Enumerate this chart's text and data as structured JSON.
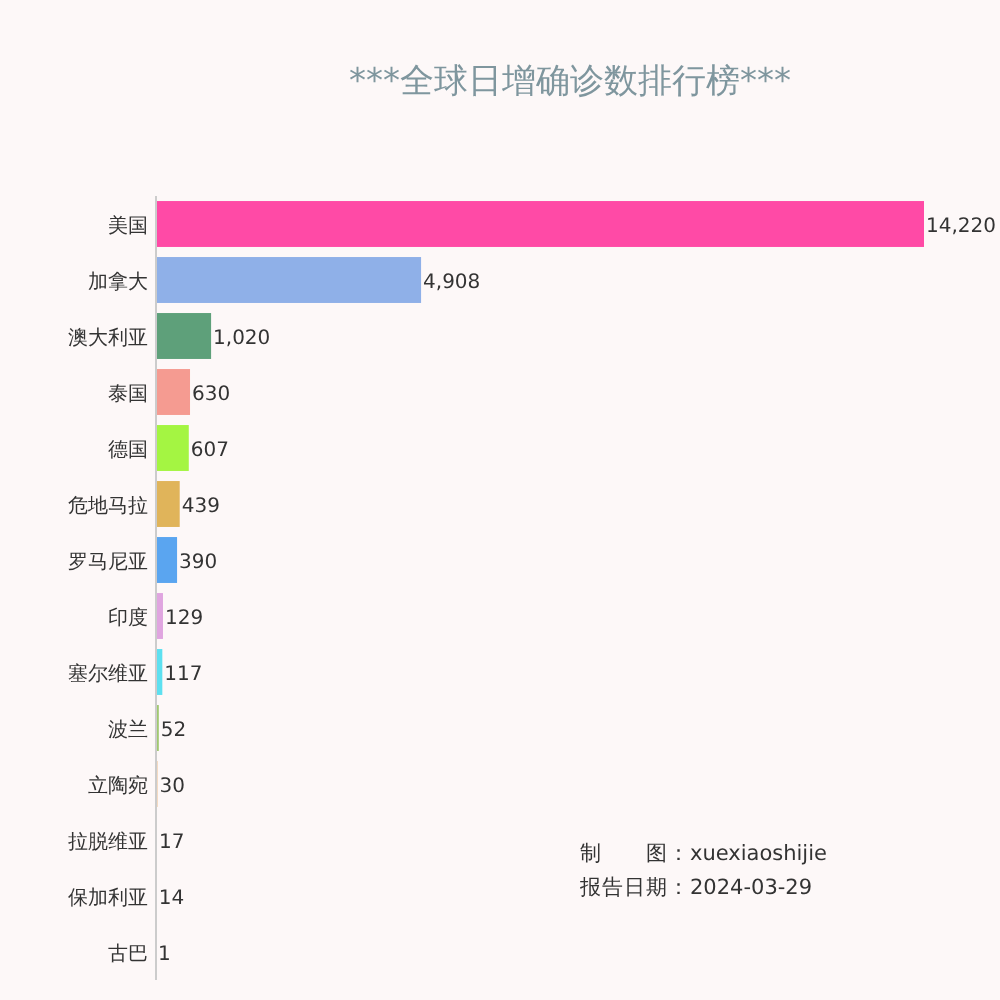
{
  "chart_data": {
    "type": "bar",
    "orientation": "horizontal",
    "title": "***全球日增确诊数排行榜***",
    "categories": [
      "美国",
      "加拿大",
      "澳大利亚",
      "泰国",
      "德国",
      "危地马拉",
      "罗马尼亚",
      "印度",
      "塞尔维亚",
      "波兰",
      "立陶宛",
      "拉脱维亚",
      "保加利亚",
      "古巴"
    ],
    "values": [
      14220,
      4908,
      1020,
      630,
      607,
      439,
      390,
      129,
      117,
      52,
      30,
      17,
      14,
      1
    ],
    "value_labels": [
      "14,220",
      "4,908",
      "1,020",
      "630",
      "607",
      "439",
      "390",
      "129",
      "117",
      "52",
      "30",
      "17",
      "14",
      "1"
    ],
    "colors": [
      "#ff4aa6",
      "#8fb0e8",
      "#5ea07a",
      "#f59b91",
      "#a4f542",
      "#e0b45a",
      "#5aa5f0",
      "#e0a5e0",
      "#5de0f0",
      "#a0c870",
      "#f0c8a0",
      "#c0a0f0",
      "#a0b0f0",
      "#f0a0a0"
    ],
    "annotations": [
      "制　　图：xuexiaoshijie",
      "报告日期：2024-03-29"
    ]
  }
}
